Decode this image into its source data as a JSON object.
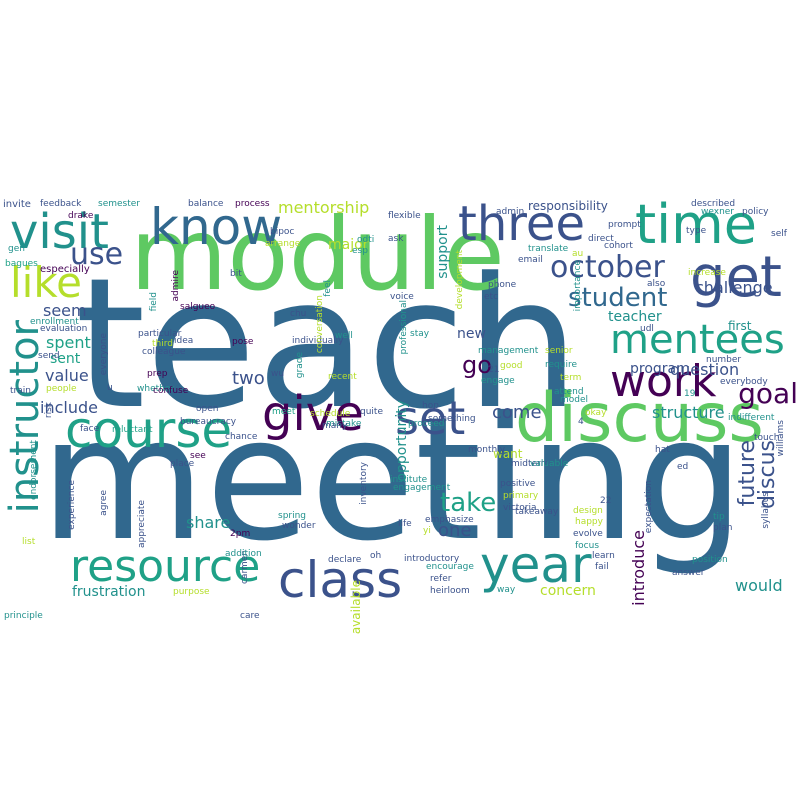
{
  "title": "",
  "colors": {
    "dark_purple": "#440154",
    "indigo": "#3b528b",
    "steel_blue": "#31688e",
    "teal": "#21918c",
    "sea_green": "#1fa187",
    "green": "#5ec962",
    "lime": "#b5de2b",
    "dark_blue": "#2c728e"
  },
  "words": {
    "teach": "teach",
    "meeting": "meeting",
    "module": "module",
    "discuss": "discuss",
    "know": "know",
    "visit": "visit",
    "time": "time",
    "get": "get",
    "three": "three",
    "class": "class",
    "course": "course",
    "resource": "resource",
    "instructor": "instructor",
    "year": "year",
    "give": "give",
    "work": "work",
    "mentees": "mentees",
    "like": "like",
    "set": "set",
    "october": "october",
    "use": "use",
    "student": "student",
    "goal": "goal",
    "future": "future",
    "discus": "discus",
    "take": "take",
    "challenge": "challenge",
    "two": "two",
    "go": "go",
    "mentorship": "mentorship",
    "major": "major",
    "spent": "spent",
    "sent": "sent",
    "seem": "seem",
    "value": "value",
    "include": "include",
    "come": "come",
    "structure": "structure",
    "question": "question",
    "program": "program",
    "introduce": "introduce",
    "share": "share",
    "one": "one",
    "would": "would",
    "concern": "concern",
    "frustration": "frustration",
    "responsibility": "responsibility",
    "teacher": "teacher",
    "first": "first",
    "support": "support",
    "opportunity": "opportunity",
    "new": "new",
    "available": "available",
    "want": "want",
    "invite": "invite",
    "feedback": "feedback",
    "semester": "semester",
    "balance": "balance",
    "process": "process",
    "drake": "drake",
    "gen": "gen",
    "bagues": "bagues",
    "especially": "especially",
    "enrollment": "enrollment",
    "evaluation": "evaluation",
    "train": "train",
    "people": "people",
    "risk": "risk",
    "face": "face",
    "endorsement": "endorsement",
    "experience": "experience",
    "agree": "agree",
    "list": "list",
    "principle": "principle",
    "purpose": "purpose",
    "care": "care",
    "bipoc": "bipoc",
    "arrange": "arrange",
    "admire": "admire",
    "bit": "bit",
    "field": "field",
    "salgueo": "salgueo",
    "particular": "particular",
    "colleague": "colleague",
    "prep": "prep",
    "whether": "whether",
    "confuse": "confuse",
    "third": "third",
    "idea": "idea",
    "pose": "pose",
    "chu": "chu",
    "wu": "wu",
    "open": "open",
    "reluctant": "reluctant",
    "bureaucracy": "bureaucracy",
    "chance": "chance",
    "place": "place",
    "see": "see",
    "appreciate": "appreciate",
    "2pm": "2pm",
    "carmen": "carmen",
    "addition": "addition",
    "wonder": "wonder",
    "spring": "spring",
    "meet": "meet",
    "schedule": "schedule",
    "mistake": "mistake",
    "many": "many",
    "grade": "grade",
    "feel": "feel",
    "individually": "individually",
    "recent": "recent",
    "conversation": "conversation",
    "well": "well",
    "declare": "declare",
    "oh": "oh",
    "inventory": "inventory",
    "odti": "odti",
    "esp": "esp",
    "ask": "ask",
    "voice": "voice",
    "flexible": "flexible",
    "stay": "stay",
    "professional": "professional",
    "development": "development",
    "hop": "hop",
    "quite": "quite",
    "something": "something",
    "institute": "institute",
    "engagement": "engagement",
    "emphasize": "emphasize",
    "life": "life",
    "yi": "yi",
    "introductory": "introductory",
    "encourage": "encourage",
    "refer": "refer",
    "heirloom": "heirloom",
    "way": "way",
    "proceed": "proceed",
    "monthly": "monthly",
    "midterm": "midterm",
    "positive": "positive",
    "primary": "primary",
    "victoria": "victoria",
    "takeaway": "takeaway",
    "engage": "engage",
    "good": "good",
    "management": "management",
    "phone": "phone",
    "email": "email",
    "admin": "admin",
    "etc": "etc",
    "21": "21",
    "translate": "translate",
    "direct": "direct",
    "prompt": "prompt",
    "au": "au",
    "importance": "importance",
    "senior": "senior",
    "require": "require",
    "term": "term",
    "attend": "attend",
    "model": "model",
    "okay": "okay",
    "valuable": "valuable",
    "design": "design",
    "happy": "happy",
    "evolve": "evolve",
    "focus": "focus",
    "learn": "learn",
    "fail": "fail",
    "4": "4",
    "22": "22",
    "hat": "hat",
    "ed": "ed",
    "tip": "tip",
    "plan": "plan",
    "position": "position",
    "answer": "answer",
    "expectation": "expectation",
    "cohort": "cohort",
    "also": "also",
    "udl": "udl",
    "increase": "increase",
    "number": "number",
    "19": "19",
    "everybody": "everybody",
    "indifferent": "indifferent",
    "type": "type",
    "described": "described",
    "wexner": "wexner",
    "policy": "policy",
    "self": "self",
    "touch": "touch",
    "williams": "williams",
    "syllabus": "syllabus",
    "u": "u",
    "send": "send",
    "everyone": "everyone"
  }
}
